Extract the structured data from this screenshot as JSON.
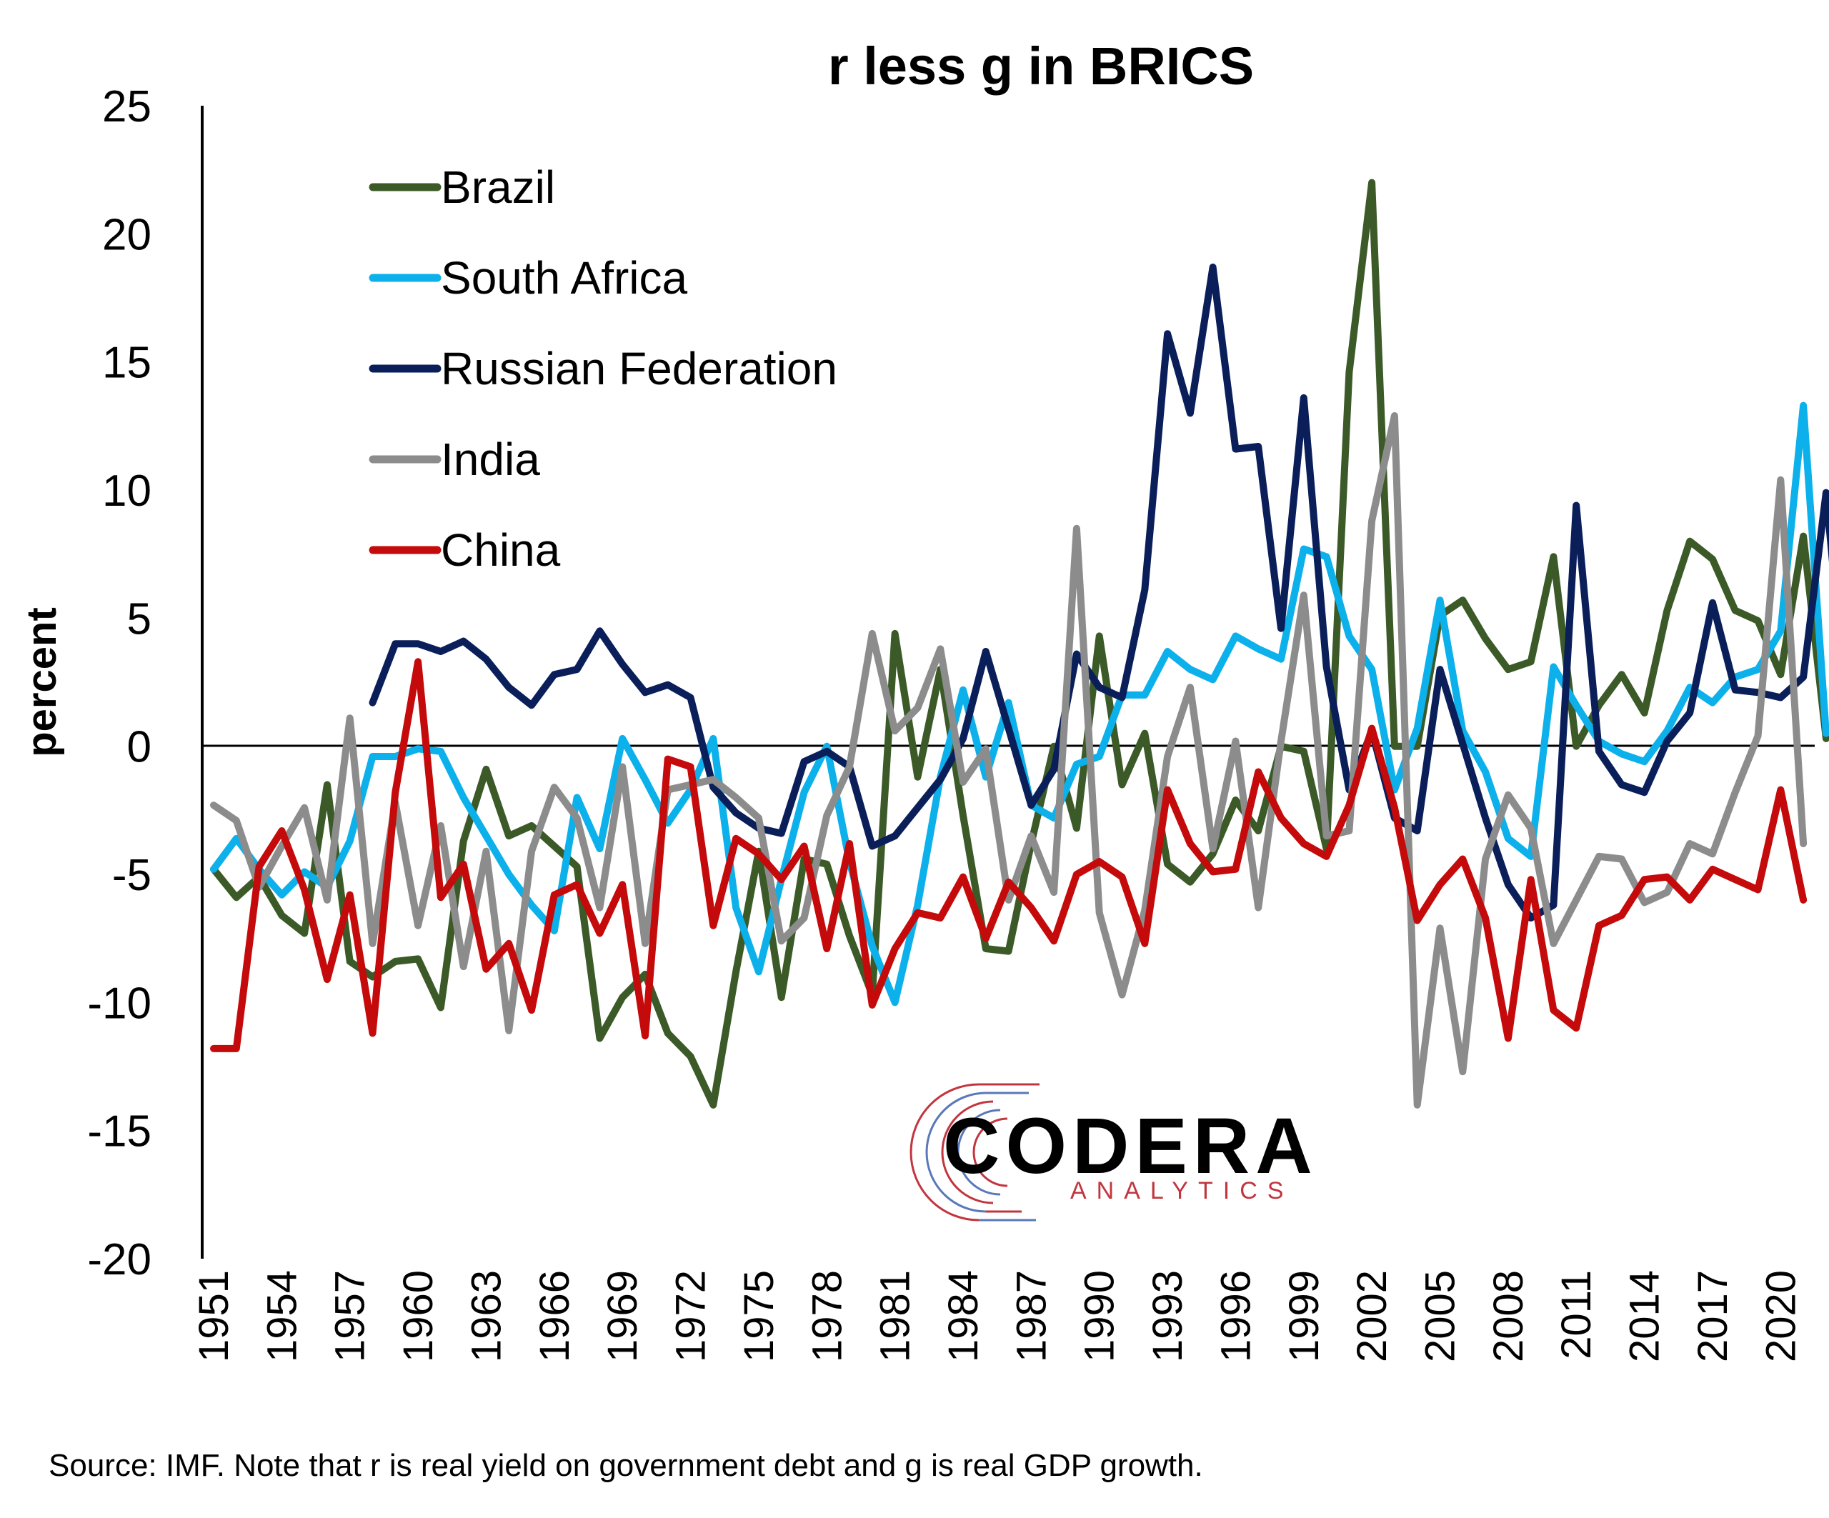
{
  "chart_data": {
    "type": "line",
    "title": "r less g in BRICS",
    "ylabel": "percent",
    "xlabel": "",
    "ylim": [
      -20,
      25
    ],
    "yticks": [
      25,
      20,
      15,
      10,
      5,
      0,
      -5,
      -10,
      -15,
      -20
    ],
    "x_start": 1951,
    "x_end": 2021,
    "xticks": [
      1951,
      1954,
      1957,
      1960,
      1963,
      1966,
      1969,
      1972,
      1975,
      1978,
      1981,
      1984,
      1987,
      1990,
      1993,
      1996,
      1999,
      2002,
      2005,
      2008,
      2011,
      2014,
      2017,
      2020
    ],
    "legend_position": "top-left",
    "series": [
      {
        "name": "Brazil",
        "color": "#3b5a28",
        "values": [
          -4.8,
          -5.9,
          -5.1,
          -6.6,
          -7.3,
          -1.5,
          -8.4,
          -9.0,
          -8.4,
          -8.3,
          -10.2,
          -3.7,
          -0.9,
          -3.5,
          -3.1,
          -3.9,
          -4.7,
          -11.4,
          -9.8,
          -8.9,
          -11.2,
          -12.1,
          -14.0,
          -8.8,
          -4.1,
          -9.8,
          -4.4,
          -4.6,
          -7.4,
          -9.7,
          4.4,
          -1.2,
          3.0,
          -2.7,
          -7.9,
          -8.0,
          -3.8,
          0.0,
          -3.2,
          4.3,
          -1.5,
          0.5,
          -4.6,
          -5.3,
          -4.2,
          -2.1,
          -3.3,
          0.0,
          -0.2,
          -4.0,
          14.6,
          22.0,
          0.0,
          0.0,
          5.1,
          5.7,
          4.2,
          3.0,
          3.3,
          7.4,
          0.0,
          1.6,
          2.8,
          1.3,
          5.3,
          8.0,
          7.3,
          5.3,
          4.9,
          2.8,
          8.2,
          0.3
        ]
      },
      {
        "name": "South Africa",
        "color": "#0cb0ea",
        "values": [
          -4.8,
          -3.6,
          -4.8,
          -5.8,
          -4.9,
          -5.5,
          -3.7,
          -0.4,
          -0.4,
          -0.1,
          -0.2,
          -2.0,
          -3.5,
          -5.0,
          -6.2,
          -7.2,
          -2.0,
          -4.0,
          0.3,
          -1.3,
          -3.0,
          -1.7,
          0.3,
          -6.3,
          -8.8,
          -5.2,
          -1.8,
          0.0,
          -4.5,
          -7.8,
          -10.0,
          -6.2,
          -1.2,
          2.2,
          -1.2,
          1.7,
          -2.3,
          -2.8,
          -0.7,
          -0.4,
          2.0,
          2.0,
          3.7,
          3.0,
          2.6,
          4.3,
          3.8,
          3.4,
          7.7,
          7.4,
          4.3,
          3.0,
          -1.7,
          0.7,
          5.7,
          0.6,
          -1.0,
          -3.6,
          -4.3,
          3.1,
          1.6,
          0.2,
          -0.3,
          -0.6,
          0.6,
          2.3,
          1.7,
          2.7,
          3.0,
          4.5,
          13.3,
          0.5
        ]
      },
      {
        "name": "Russian Federation",
        "color": "#0a1e5a",
        "values": [
          null,
          null,
          null,
          null,
          null,
          null,
          null,
          1.7,
          4.0,
          4.0,
          3.7,
          4.1,
          3.4,
          2.3,
          1.6,
          2.8,
          3.0,
          4.5,
          3.2,
          2.1,
          2.4,
          1.9,
          -1.6,
          -2.6,
          -3.2,
          -3.4,
          -0.6,
          -0.2,
          -0.8,
          -3.9,
          -3.5,
          -2.4,
          -1.3,
          0.3,
          3.7,
          0.7,
          -2.3,
          -0.9,
          3.6,
          2.3,
          1.9,
          6.1,
          16.1,
          13.0,
          18.7,
          11.6,
          11.7,
          4.6,
          13.6,
          3.1,
          -1.7,
          0.6,
          -2.8,
          -3.3,
          3.0,
          0.1,
          -2.8,
          -5.4,
          -6.7,
          -6.2,
          9.4,
          -0.2,
          -1.5,
          -1.8,
          0.2,
          1.3,
          5.6,
          2.2,
          2.1,
          1.9,
          2.7,
          9.9,
          0.4
        ]
      },
      {
        "name": "India",
        "color": "#8c8c8c",
        "values": [
          -2.3,
          -2.9,
          -5.5,
          -3.9,
          -2.4,
          -6.0,
          1.1,
          -7.7,
          -2.2,
          -7.0,
          -3.1,
          -8.6,
          -4.1,
          -11.1,
          -4.1,
          -1.6,
          -2.8,
          -6.3,
          -0.8,
          -7.7,
          -1.7,
          -1.5,
          -1.3,
          -2.0,
          -2.8,
          -7.6,
          -6.7,
          -2.7,
          -0.8,
          4.4,
          0.6,
          1.5,
          3.8,
          -1.4,
          -0.1,
          -6.0,
          -3.5,
          -5.7,
          8.5,
          -6.5,
          -9.7,
          -6.4,
          -0.4,
          2.3,
          -4.0,
          0.2,
          -6.3,
          0.2,
          5.9,
          -3.5,
          -3.3,
          8.8,
          12.9,
          -14.0,
          -7.1,
          -12.7,
          -4.4,
          -1.9,
          -3.2,
          -7.7,
          -6.0,
          -4.3,
          -4.4,
          -6.1,
          -5.7,
          -3.8,
          -4.2,
          -1.8,
          0.4,
          10.4,
          -3.8
        ]
      },
      {
        "name": "China",
        "color": "#c40a0a",
        "values": [
          -11.8,
          -11.8,
          -4.7,
          -3.3,
          -5.6,
          -9.1,
          -5.8,
          -11.2,
          -1.8,
          3.3,
          -5.9,
          -4.6,
          -8.7,
          -7.7,
          -10.3,
          -5.8,
          -5.4,
          -7.3,
          -5.4,
          -11.3,
          -0.5,
          -0.8,
          -7.0,
          -3.6,
          -4.2,
          -5.2,
          -3.9,
          -7.9,
          -3.8,
          -10.1,
          -7.9,
          -6.5,
          -6.7,
          -5.1,
          -7.5,
          -5.3,
          -6.3,
          -7.6,
          -5.0,
          -4.5,
          -5.1,
          -7.7,
          -1.7,
          -3.8,
          -4.9,
          -4.8,
          -1.0,
          -2.8,
          -3.8,
          -4.3,
          -2.3,
          0.7,
          -2.4,
          -6.8,
          -5.4,
          -4.4,
          -6.7,
          -11.4,
          -5.2,
          -10.3,
          -11.0,
          -7.0,
          -6.6,
          -5.2,
          -5.1,
          -6.0,
          -4.8,
          -5.2,
          -5.6,
          -1.7,
          -6.0
        ]
      }
    ]
  },
  "source_note": "Source: IMF. Note that r is real yield on government debt and g is real GDP growth.",
  "logo": {
    "name": "CODERA",
    "tagline": "ANALYTICS"
  }
}
